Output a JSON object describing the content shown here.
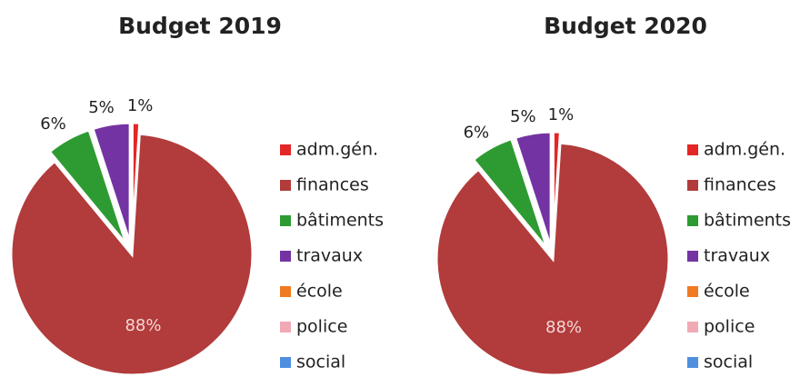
{
  "chart_data": [
    {
      "type": "pie",
      "title": "Budget 2019",
      "categories": [
        "adm.gén.",
        "finances",
        "bâtiments",
        "travaux",
        "école",
        "police",
        "social"
      ],
      "values": [
        1,
        88,
        6,
        5,
        0,
        0,
        0
      ],
      "value_labels": [
        "1%",
        "88%",
        "6%",
        "5%",
        null,
        null,
        null
      ],
      "colors": [
        "#e32626",
        "#b23b3b",
        "#2e9b32",
        "#7433a3",
        "#f07a22",
        "#f2a9b6",
        "#4f8fe0"
      ]
    },
    {
      "type": "pie",
      "title": "Budget 2020",
      "categories": [
        "adm.gén.",
        "finances",
        "bâtiments",
        "travaux",
        "école",
        "police",
        "social"
      ],
      "values": [
        1,
        88,
        6,
        5,
        0,
        0,
        0
      ],
      "value_labels": [
        "1%",
        "88%",
        "6%",
        "5%",
        null,
        null,
        null
      ],
      "colors": [
        "#e32626",
        "#b23b3b",
        "#2e9b32",
        "#7433a3",
        "#f07a22",
        "#f2a9b6",
        "#4f8fe0"
      ]
    }
  ]
}
